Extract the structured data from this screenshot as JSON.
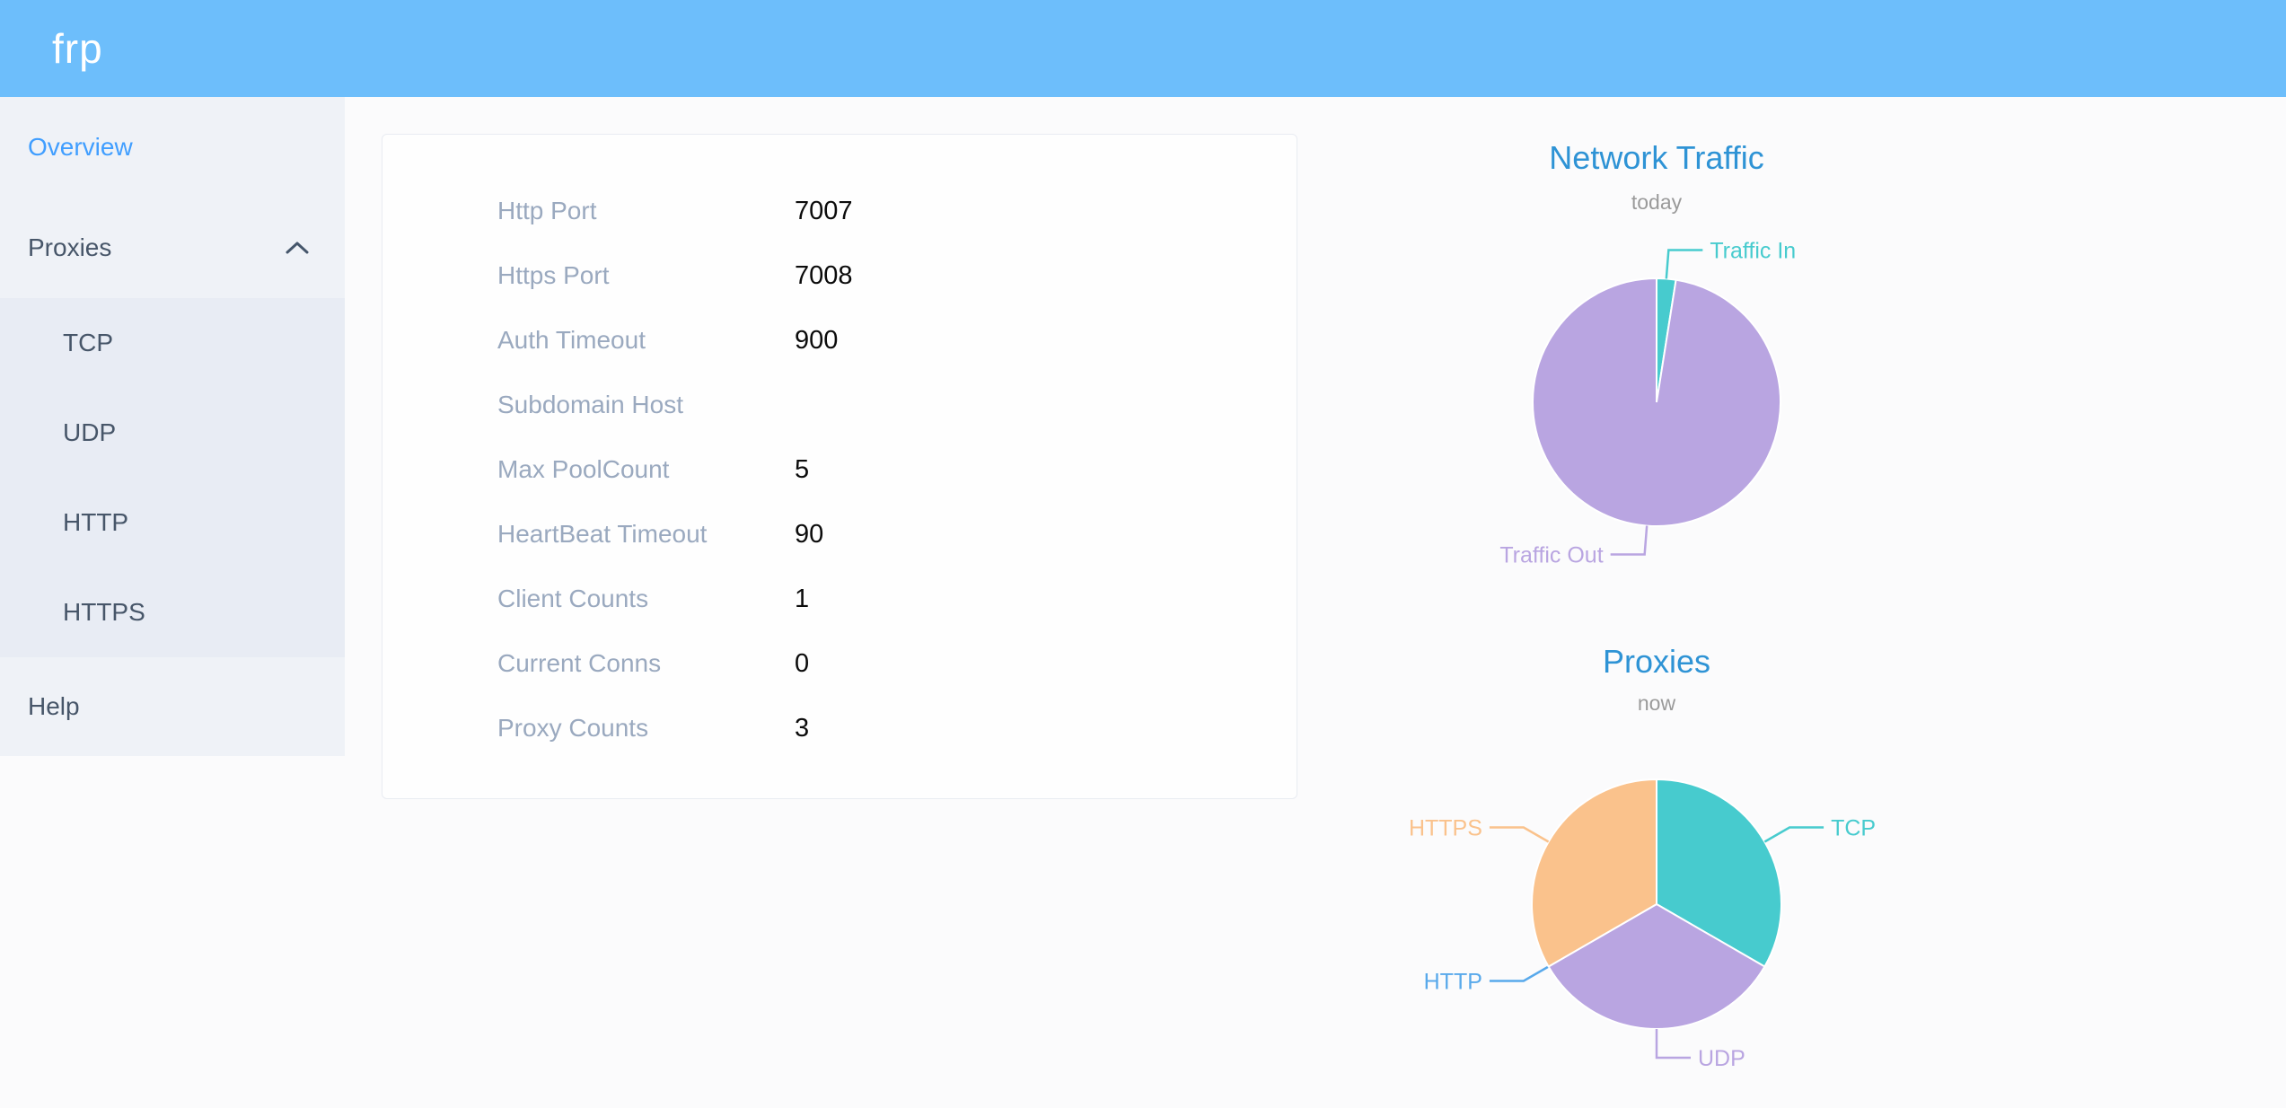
{
  "header": {
    "logo": "frp"
  },
  "sidebar": {
    "items": [
      {
        "label": "Overview",
        "active": true
      },
      {
        "label": "Proxies",
        "expanded": true,
        "children": [
          "TCP",
          "UDP",
          "HTTP",
          "HTTPS"
        ]
      },
      {
        "label": "Help"
      }
    ]
  },
  "overview": {
    "fields": [
      {
        "label": "Http Port",
        "value": "7007"
      },
      {
        "label": "Https Port",
        "value": "7008"
      },
      {
        "label": "Auth Timeout",
        "value": "900"
      },
      {
        "label": "Subdomain Host",
        "value": ""
      },
      {
        "label": "Max PoolCount",
        "value": "5"
      },
      {
        "label": "HeartBeat Timeout",
        "value": "90"
      },
      {
        "label": "Client Counts",
        "value": "1"
      },
      {
        "label": "Current Conns",
        "value": "0"
      },
      {
        "label": "Proxy Counts",
        "value": "3"
      }
    ]
  },
  "chart_data": [
    {
      "type": "pie",
      "title": "Network Traffic",
      "subtitle": "today",
      "legend_position": "none",
      "value_unit": "percent (estimated from arc angles, no numeric labels shown)",
      "series": [
        {
          "name": "Traffic In",
          "value": 2.5,
          "color": "#47cbce"
        },
        {
          "name": "Traffic Out",
          "value": 97.5,
          "color": "#b9a5e1"
        }
      ]
    },
    {
      "type": "pie",
      "title": "Proxies",
      "subtitle": "now",
      "legend_position": "none",
      "value_unit": "proxy count",
      "series": [
        {
          "name": "TCP",
          "value": 1,
          "color": "#47cbce"
        },
        {
          "name": "UDP",
          "value": 1,
          "color": "#b9a5e1"
        },
        {
          "name": "HTTP",
          "value": 0,
          "color": "#58a9eb"
        },
        {
          "name": "HTTPS",
          "value": 1,
          "color": "#fac28c"
        }
      ]
    }
  ],
  "colors": {
    "header_bg": "#6dbefb",
    "sidebar_bg": "#eff2f7",
    "submenu_bg": "#e8ecf4",
    "menu_text": "#475669",
    "menu_active": "#409eff",
    "card_label": "#9aa9bf",
    "chart_title": "#2e93d5",
    "chart_subtitle": "#9a9a9a"
  }
}
